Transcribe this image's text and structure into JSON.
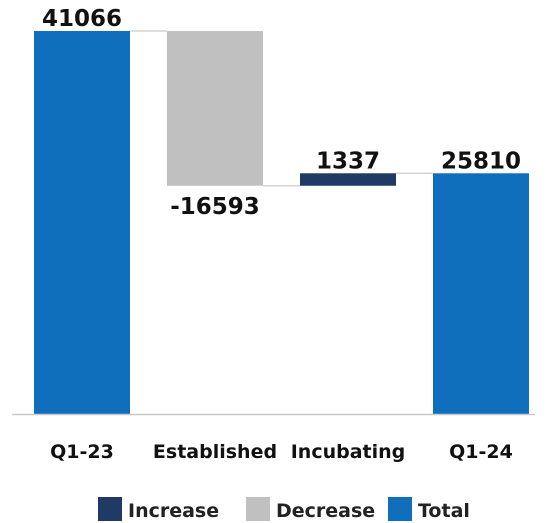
{
  "chart_data": {
    "type": "waterfall",
    "categories": [
      "Q1-23",
      "Established",
      "Incubating",
      "Q1-24"
    ],
    "values": [
      41066,
      -16593,
      1337,
      25810
    ],
    "kinds": [
      "total",
      "decrease",
      "increase",
      "total"
    ],
    "value_labels": [
      "41066",
      "-16593",
      "1337",
      "25810"
    ],
    "ylim": [
      0,
      41066
    ],
    "grid": false,
    "legend_position": "bottom",
    "legend": [
      {
        "key": "increase",
        "label": "Increase"
      },
      {
        "key": "decrease",
        "label": "Decrease"
      },
      {
        "key": "total",
        "label": "Total"
      }
    ],
    "colors": {
      "increase": "#1f3a64",
      "decrease": "#c0c0c0",
      "total": "#0f6fbc",
      "connector": "#d4d4d4",
      "baseline": "#c9c9c9"
    }
  }
}
